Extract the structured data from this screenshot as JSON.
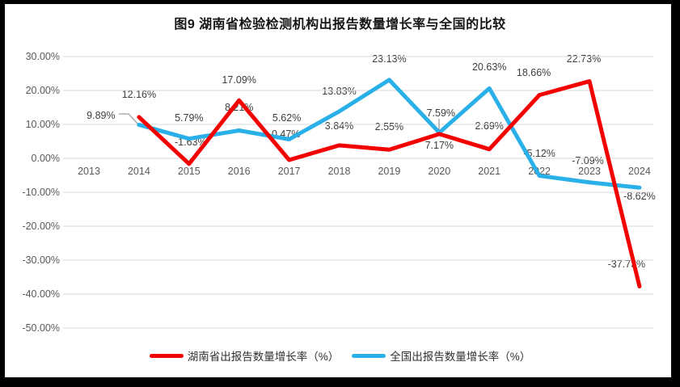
{
  "title": "图9 湖南省检验检测机构出报告数量增长率与全国的比较",
  "chart_data": {
    "type": "line",
    "categories": [
      "2013",
      "2014",
      "2015",
      "2016",
      "2017",
      "2018",
      "2019",
      "2020",
      "2021",
      "2022",
      "2023",
      "2024"
    ],
    "series": [
      {
        "name": "湖南省出报告数量增长率（%）",
        "color": "#f30000",
        "values": [
          null,
          12.16,
          -1.63,
          17.09,
          -0.47,
          3.84,
          2.55,
          7.17,
          2.69,
          18.66,
          22.73,
          -37.73
        ],
        "labels": [
          "",
          "12.16%",
          "-1.63%",
          "17.09%",
          "-0.47%",
          "3.84%",
          "2.55%",
          "7.17%",
          "2.69%",
          "18.66%",
          "22.73%",
          "-37.73%"
        ]
      },
      {
        "name": "全国出报告数量增长率（%）",
        "color": "#2ab0e8",
        "values": [
          null,
          9.89,
          5.79,
          8.21,
          5.62,
          13.83,
          23.13,
          7.59,
          20.63,
          -5.12,
          -7.09,
          -8.62
        ],
        "labels": [
          "",
          "9.89%",
          "5.79%",
          "8.21%",
          "5.62%",
          "13.83%",
          "23.13%",
          "7.59%",
          "20.63%",
          "-5.12%",
          "-7.09%",
          "-8.62%"
        ]
      }
    ],
    "ylim": [
      -50,
      30
    ],
    "ytick_step": 10,
    "ytick_labels": [
      "30.00%",
      "20.00%",
      "10.00%",
      "0.00%",
      "-10.00%",
      "-20.00%",
      "-30.00%",
      "-40.00%",
      "-50.00%"
    ],
    "grid": true,
    "legend_position": "bottom",
    "data_labels_shown": true
  },
  "colors": {
    "grid": "#d9d9d9",
    "leader_line": "#ababab",
    "axis_text": "#595959",
    "label_text": "#3d3d3d",
    "frame": "#000000"
  }
}
